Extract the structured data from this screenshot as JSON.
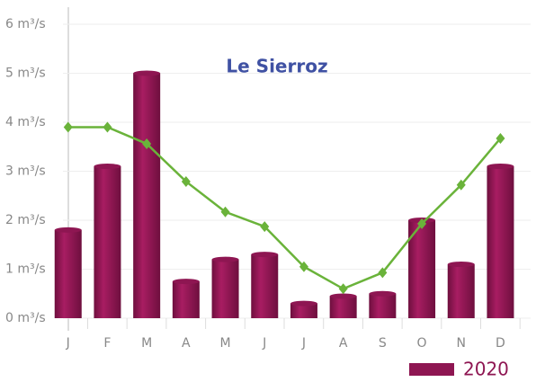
{
  "chart_data": {
    "type": "bar_line",
    "title": "Le Sierroz",
    "categories": [
      "J",
      "F",
      "M",
      "A",
      "M",
      "J",
      "J",
      "A",
      "S",
      "O",
      "N",
      "D"
    ],
    "series": [
      {
        "name": "2020",
        "type": "bar",
        "color": "#8e1652",
        "values": [
          1.8,
          3.1,
          5.0,
          0.75,
          1.2,
          1.3,
          0.3,
          0.45,
          0.5,
          2.0,
          1.1,
          3.1
        ]
      },
      {
        "type": "line",
        "color": "#6ab33a",
        "values": [
          3.9,
          3.9,
          3.56,
          2.79,
          2.17,
          1.87,
          1.05,
          0.6,
          0.93,
          1.93,
          2.72,
          3.67
        ]
      }
    ],
    "ylim": [
      0,
      6
    ],
    "yticks": [
      {
        "value": 0,
        "label": "0 m³/s"
      },
      {
        "value": 1,
        "label": "1 m³/s"
      },
      {
        "value": 2,
        "label": "2 m³/s"
      },
      {
        "value": 3,
        "label": "3 m³/s"
      },
      {
        "value": 4,
        "label": "4 m³/s"
      },
      {
        "value": 5,
        "label": "5 m³/s"
      },
      {
        "value": 6,
        "label": "6 m³/s"
      }
    ],
    "grid": true
  }
}
